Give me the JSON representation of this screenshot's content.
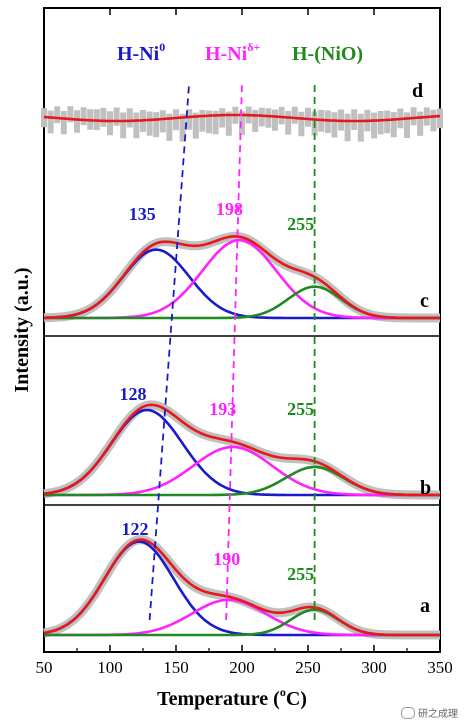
{
  "chart_data": {
    "type": "line",
    "xlabel": "Temperature (",
    "xlabel_sup": "o",
    "xlabel_end": "C)",
    "ylabel": "Intensity (a.u.)",
    "xlim": [
      50,
      350
    ],
    "x_ticks": [
      "50",
      "100",
      "150",
      "200",
      "250",
      "300",
      "350"
    ],
    "species_labels": [
      {
        "text": "H-Ni",
        "sup": "0",
        "color": "#1a1acd",
        "line_x": [
          130,
          160
        ]
      },
      {
        "text": "H-Ni",
        "sup": "δ+",
        "color": "#ff22ff",
        "line_x": [
          188,
          200
        ]
      },
      {
        "text": "H-(NiO)",
        "sup": "",
        "color": "#1f8a1f",
        "line_x": [
          255,
          255
        ]
      }
    ],
    "colors": {
      "Ni0": "#1a1acd",
      "Nid": "#ff22ff",
      "NiO": "#1f8a1f",
      "fit": "#e8171b",
      "exp": "#c0c0c0"
    },
    "samples": [
      {
        "label": "a",
        "peaks": [
          {
            "center": 122,
            "label": "122",
            "height": 0.85,
            "width": 26
          },
          {
            "center": 190,
            "label": "190",
            "height": 0.32,
            "width": 28
          },
          {
            "center": 255,
            "label": "255",
            "height": 0.23,
            "width": 18
          }
        ]
      },
      {
        "label": "b",
        "peaks": [
          {
            "center": 128,
            "label": "128",
            "height": 0.85,
            "width": 27
          },
          {
            "center": 193,
            "label": "193",
            "height": 0.48,
            "width": 30
          },
          {
            "center": 255,
            "label": "255",
            "height": 0.28,
            "width": 22
          }
        ]
      },
      {
        "label": "c",
        "peaks": [
          {
            "center": 135,
            "label": "135",
            "height": 0.72,
            "width": 25
          },
          {
            "center": 198,
            "label": "198",
            "height": 0.82,
            "width": 28
          },
          {
            "center": 255,
            "label": "255",
            "height": 0.33,
            "width": 20
          }
        ]
      },
      {
        "label": "d",
        "peaks": []
      }
    ]
  },
  "watermark": "研之成理"
}
